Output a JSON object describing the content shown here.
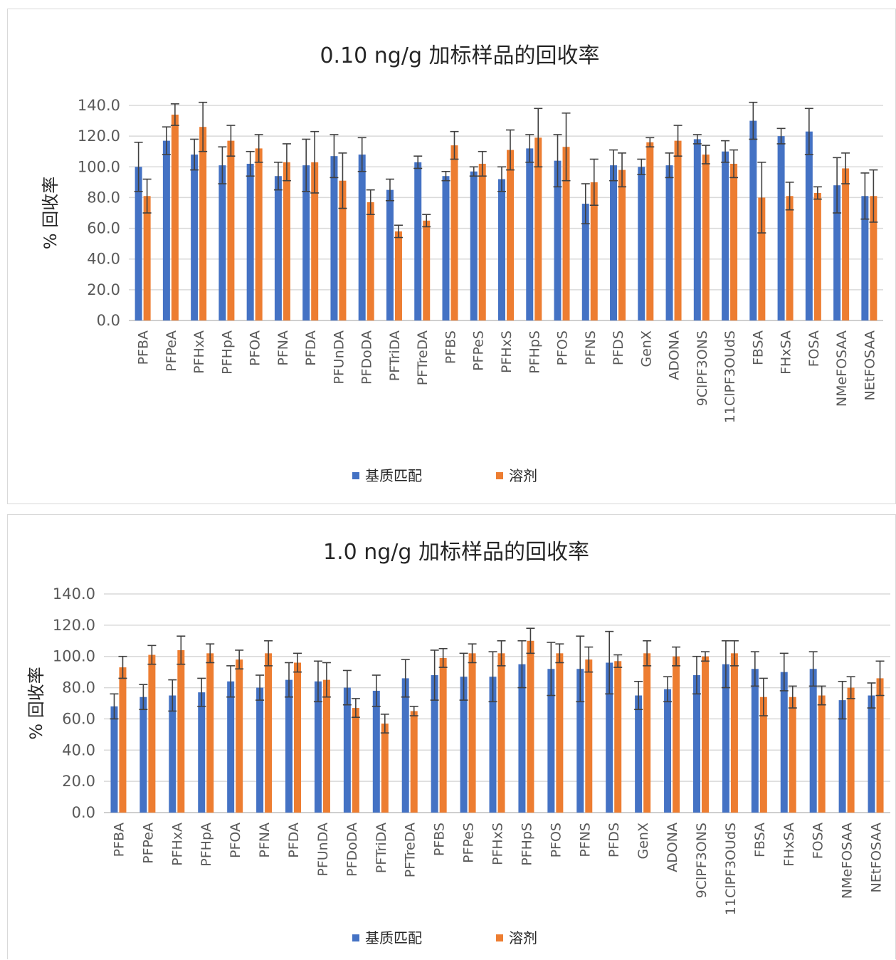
{
  "colors": {
    "matrix": "#4472C4",
    "solvent": "#ED7D31",
    "grid": "#D9D9D9",
    "axis": "#BFBFBF",
    "error": "#404040"
  },
  "chart_data": [
    {
      "type": "bar",
      "title": "0.10 ng/g 加标样品的回收率",
      "ylabel": "% 回收率",
      "ylim": [
        0,
        140
      ],
      "yticks": [
        "0.0",
        "20.0",
        "40.0",
        "60.0",
        "80.0",
        "100.0",
        "120.0",
        "140.0"
      ],
      "grid": true,
      "legend_position": "bottom",
      "categories": [
        "PFBA",
        "PFPeA",
        "PFHxA",
        "PFHpA",
        "PFOA",
        "PFNA",
        "PFDA",
        "PFUnDA",
        "PFDoDA",
        "PFTriDA",
        "PFTreDA",
        "PFBS",
        "PFPeS",
        "PFHxS",
        "PFHpS",
        "PFOS",
        "PFNS",
        "PFDS",
        "GenX",
        "ADONA",
        "9ClPF3ONS",
        "11ClPF3OUdS",
        "FBSA",
        "FHxSA",
        "FOSA",
        "NMeFOSAA",
        "NEtFOSAA"
      ],
      "series": [
        {
          "name": "基质匹配",
          "values": [
            100,
            117,
            108,
            101,
            102,
            94,
            101,
            107,
            108,
            85,
            103,
            94,
            97,
            92,
            112,
            104,
            76,
            101,
            100,
            101,
            118,
            110,
            130,
            120,
            123,
            88,
            81
          ],
          "errors": [
            16,
            9,
            10,
            12,
            8,
            9,
            17,
            14,
            11,
            7,
            4,
            3,
            3,
            8,
            9,
            17,
            13,
            10,
            5,
            8,
            3,
            7,
            12,
            5,
            15,
            18,
            15
          ]
        },
        {
          "name": "溶剂",
          "values": [
            81,
            134,
            126,
            117,
            112,
            103,
            103,
            91,
            77,
            58,
            65,
            114,
            102,
            111,
            119,
            113,
            90,
            98,
            116,
            117,
            108,
            102,
            80,
            81,
            83,
            99,
            81
          ],
          "errors": [
            11,
            7,
            16,
            10,
            9,
            12,
            20,
            18,
            8,
            4,
            4,
            9,
            8,
            13,
            19,
            22,
            15,
            11,
            3,
            10,
            6,
            9,
            23,
            9,
            4,
            10,
            17
          ]
        }
      ]
    },
    {
      "type": "bar",
      "title": "1.0 ng/g 加标样品的回收率",
      "ylabel": "% 回收率",
      "ylim": [
        0,
        140
      ],
      "yticks": [
        "0.0",
        "20.0",
        "40.0",
        "60.0",
        "80.0",
        "100.0",
        "120.0",
        "140.0"
      ],
      "grid": true,
      "legend_position": "bottom",
      "categories": [
        "PFBA",
        "PFPeA",
        "PFHxA",
        "PFHpA",
        "PFOA",
        "PFNA",
        "PFDA",
        "PFUnDA",
        "PFDoDA",
        "PFTriDA",
        "PFTreDA",
        "PFBS",
        "PFPeS",
        "PFHxS",
        "PFHpS",
        "PFOS",
        "PFNS",
        "PFDS",
        "GenX",
        "ADONA",
        "9ClPF3ONS",
        "11ClPF3OUdS",
        "FBSA",
        "FHxSA",
        "FOSA",
        "NMeFOSAA",
        "NEtFOSAA"
      ],
      "series": [
        {
          "name": "基质匹配",
          "values": [
            68,
            74,
            75,
            77,
            84,
            80,
            85,
            84,
            80,
            78,
            86,
            88,
            87,
            87,
            95,
            92,
            92,
            96,
            75,
            79,
            88,
            95,
            92,
            90,
            92,
            72,
            75
          ],
          "errors": [
            8,
            8,
            10,
            9,
            10,
            8,
            11,
            13,
            11,
            10,
            12,
            16,
            15,
            16,
            15,
            17,
            21,
            20,
            9,
            8,
            12,
            15,
            11,
            12,
            11,
            12,
            8
          ]
        },
        {
          "name": "溶剂",
          "values": [
            93,
            101,
            104,
            102,
            98,
            102,
            96,
            85,
            67,
            57,
            65,
            99,
            102,
            102,
            110,
            102,
            98,
            97,
            102,
            100,
            100,
            102,
            74,
            74,
            75,
            80,
            86
          ],
          "errors": [
            7,
            6,
            9,
            6,
            6,
            8,
            6,
            11,
            6,
            6,
            3,
            6,
            6,
            8,
            8,
            6,
            8,
            4,
            8,
            6,
            3,
            8,
            12,
            7,
            6,
            7,
            11
          ]
        }
      ]
    }
  ]
}
